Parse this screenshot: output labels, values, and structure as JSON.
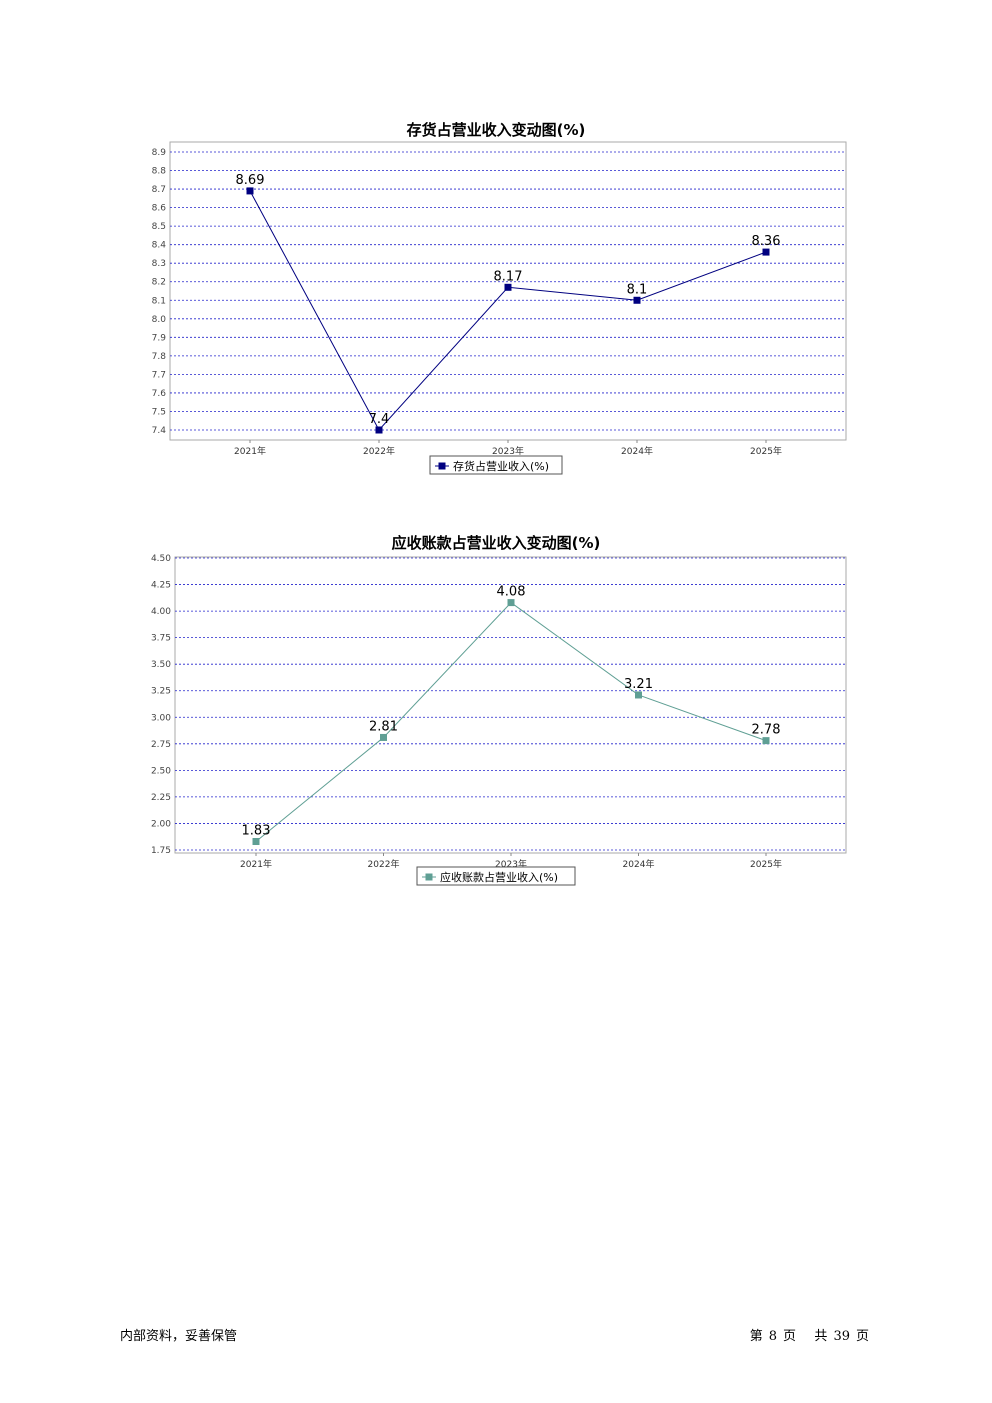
{
  "chart_data": [
    {
      "type": "line",
      "title": "存货占营业收入变动图(%)",
      "categories": [
        "2021年",
        "2022年",
        "2023年",
        "2024年",
        "2025年"
      ],
      "series": [
        {
          "name": "存货占营业收入(%)",
          "values": [
            8.69,
            7.4,
            8.17,
            8.1,
            8.36
          ],
          "color": "#000080"
        }
      ],
      "yticks": [
        "8.9",
        "8.8",
        "8.7",
        "8.6",
        "8.5",
        "8.4",
        "8.3",
        "8.2",
        "8.1",
        "8.0",
        "7.9",
        "7.8",
        "7.7",
        "7.6",
        "7.5",
        "7.4"
      ],
      "ylim": [
        7.35,
        8.95
      ],
      "grid": true,
      "legend": "bottom-center"
    },
    {
      "type": "line",
      "title": "应收账款占营业收入变动图(%)",
      "categories": [
        "2021年",
        "2022年",
        "2023年",
        "2024年",
        "2025年"
      ],
      "series": [
        {
          "name": "应收账款占营业收入(%)",
          "values": [
            1.83,
            2.81,
            4.08,
            3.21,
            2.78
          ],
          "color": "#5f9f94"
        }
      ],
      "yticks": [
        "4.50",
        "4.25",
        "4.00",
        "3.75",
        "3.50",
        "3.25",
        "3.00",
        "2.75",
        "2.50",
        "2.25",
        "2.00",
        "1.75"
      ],
      "ylim": [
        1.75,
        4.5
      ],
      "grid": true,
      "legend": "bottom-center"
    }
  ],
  "footer": {
    "left": "内部资料，妥善保管",
    "page_prefix": "第",
    "page_num": "8",
    "page_unit": "页",
    "total_prefix": "共",
    "total_num": "39",
    "total_unit": "页"
  }
}
